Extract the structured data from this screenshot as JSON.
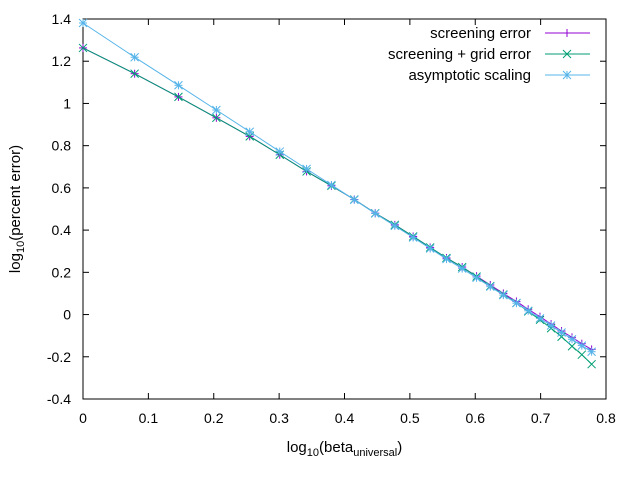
{
  "chart_data": {
    "type": "line",
    "xlabel": {
      "prefix": "log",
      "prefix_sub": "10",
      "main": "(beta",
      "main_sub": "universal",
      "suffix": ")"
    },
    "ylabel": {
      "prefix": "log",
      "prefix_sub": "10",
      "main": "(percent error)"
    },
    "xlim": [
      0,
      0.8
    ],
    "ylim": [
      -0.4,
      1.4
    ],
    "x_ticks": [
      {
        "v": 0,
        "label": "0"
      },
      {
        "v": 0.1,
        "label": "0.1"
      },
      {
        "v": 0.2,
        "label": "0.2"
      },
      {
        "v": 0.3,
        "label": "0.3"
      },
      {
        "v": 0.4,
        "label": "0.4"
      },
      {
        "v": 0.5,
        "label": "0.5"
      },
      {
        "v": 0.6,
        "label": "0.6"
      },
      {
        "v": 0.7,
        "label": "0.7"
      },
      {
        "v": 0.8,
        "label": "0.8"
      }
    ],
    "y_ticks": [
      {
        "v": 1.4,
        "label": "1.4"
      },
      {
        "v": 1.2,
        "label": "1.2"
      },
      {
        "v": 1,
        "label": "1"
      },
      {
        "v": 0.8,
        "label": "0.8"
      },
      {
        "v": 0.6,
        "label": "0.6"
      },
      {
        "v": 0.4,
        "label": "0.4"
      },
      {
        "v": 0.2,
        "label": "0.2"
      },
      {
        "v": 0,
        "label": "0"
      },
      {
        "v": -0.2,
        "label": "-0.2"
      },
      {
        "v": -0.4,
        "label": "-0.4"
      }
    ],
    "grid": false,
    "legend_position": "top-right",
    "series": [
      {
        "name": "screening error",
        "color": "#9400d3",
        "marker": "plus",
        "points": [
          [
            0,
            1.263
          ],
          [
            0.079,
            1.141
          ],
          [
            0.146,
            1.031
          ],
          [
            0.204,
            0.932
          ],
          [
            0.255,
            0.844
          ],
          [
            0.301,
            0.757
          ],
          [
            0.342,
            0.678
          ],
          [
            0.38,
            0.61
          ],
          [
            0.415,
            0.545
          ],
          [
            0.447,
            0.48
          ],
          [
            0.477,
            0.425
          ],
          [
            0.505,
            0.37
          ],
          [
            0.531,
            0.318
          ],
          [
            0.556,
            0.268
          ],
          [
            0.58,
            0.225
          ],
          [
            0.602,
            0.182
          ],
          [
            0.623,
            0.14
          ],
          [
            0.643,
            0.1
          ],
          [
            0.663,
            0.062
          ],
          [
            0.681,
            0.025
          ],
          [
            0.699,
            -0.01
          ],
          [
            0.716,
            -0.045
          ],
          [
            0.732,
            -0.078
          ],
          [
            0.748,
            -0.108
          ],
          [
            0.763,
            -0.138
          ],
          [
            0.778,
            -0.165
          ]
        ]
      },
      {
        "name": "screening + grid error",
        "color": "#009e73",
        "marker": "x",
        "points": [
          [
            0,
            1.263
          ],
          [
            0.079,
            1.141
          ],
          [
            0.146,
            1.031
          ],
          [
            0.204,
            0.932
          ],
          [
            0.255,
            0.844
          ],
          [
            0.301,
            0.757
          ],
          [
            0.342,
            0.678
          ],
          [
            0.38,
            0.61
          ],
          [
            0.415,
            0.545
          ],
          [
            0.447,
            0.48
          ],
          [
            0.477,
            0.425
          ],
          [
            0.505,
            0.37
          ],
          [
            0.531,
            0.318
          ],
          [
            0.556,
            0.268
          ],
          [
            0.58,
            0.225
          ],
          [
            0.602,
            0.18
          ],
          [
            0.623,
            0.135
          ],
          [
            0.643,
            0.095
          ],
          [
            0.663,
            0.055
          ],
          [
            0.681,
            0.015
          ],
          [
            0.699,
            -0.025
          ],
          [
            0.716,
            -0.065
          ],
          [
            0.732,
            -0.105
          ],
          [
            0.748,
            -0.15
          ],
          [
            0.763,
            -0.19
          ],
          [
            0.778,
            -0.235
          ]
        ]
      },
      {
        "name": "asymptotic scaling",
        "color": "#56b4e9",
        "marker": "star",
        "points": [
          [
            0,
            1.381
          ],
          [
            0.079,
            1.219
          ],
          [
            0.146,
            1.086
          ],
          [
            0.204,
            0.969
          ],
          [
            0.255,
            0.866
          ],
          [
            0.301,
            0.772
          ],
          [
            0.342,
            0.69
          ],
          [
            0.38,
            0.614
          ],
          [
            0.415,
            0.544
          ],
          [
            0.447,
            0.479
          ],
          [
            0.477,
            0.42
          ],
          [
            0.505,
            0.365
          ],
          [
            0.531,
            0.313
          ],
          [
            0.556,
            0.263
          ],
          [
            0.58,
            0.218
          ],
          [
            0.602,
            0.174
          ],
          [
            0.623,
            0.132
          ],
          [
            0.643,
            0.092
          ],
          [
            0.663,
            0.054
          ],
          [
            0.681,
            0.018
          ],
          [
            0.699,
            -0.018
          ],
          [
            0.716,
            -0.052
          ],
          [
            0.732,
            -0.085
          ],
          [
            0.748,
            -0.117
          ],
          [
            0.763,
            -0.147
          ],
          [
            0.778,
            -0.176
          ]
        ]
      }
    ]
  }
}
